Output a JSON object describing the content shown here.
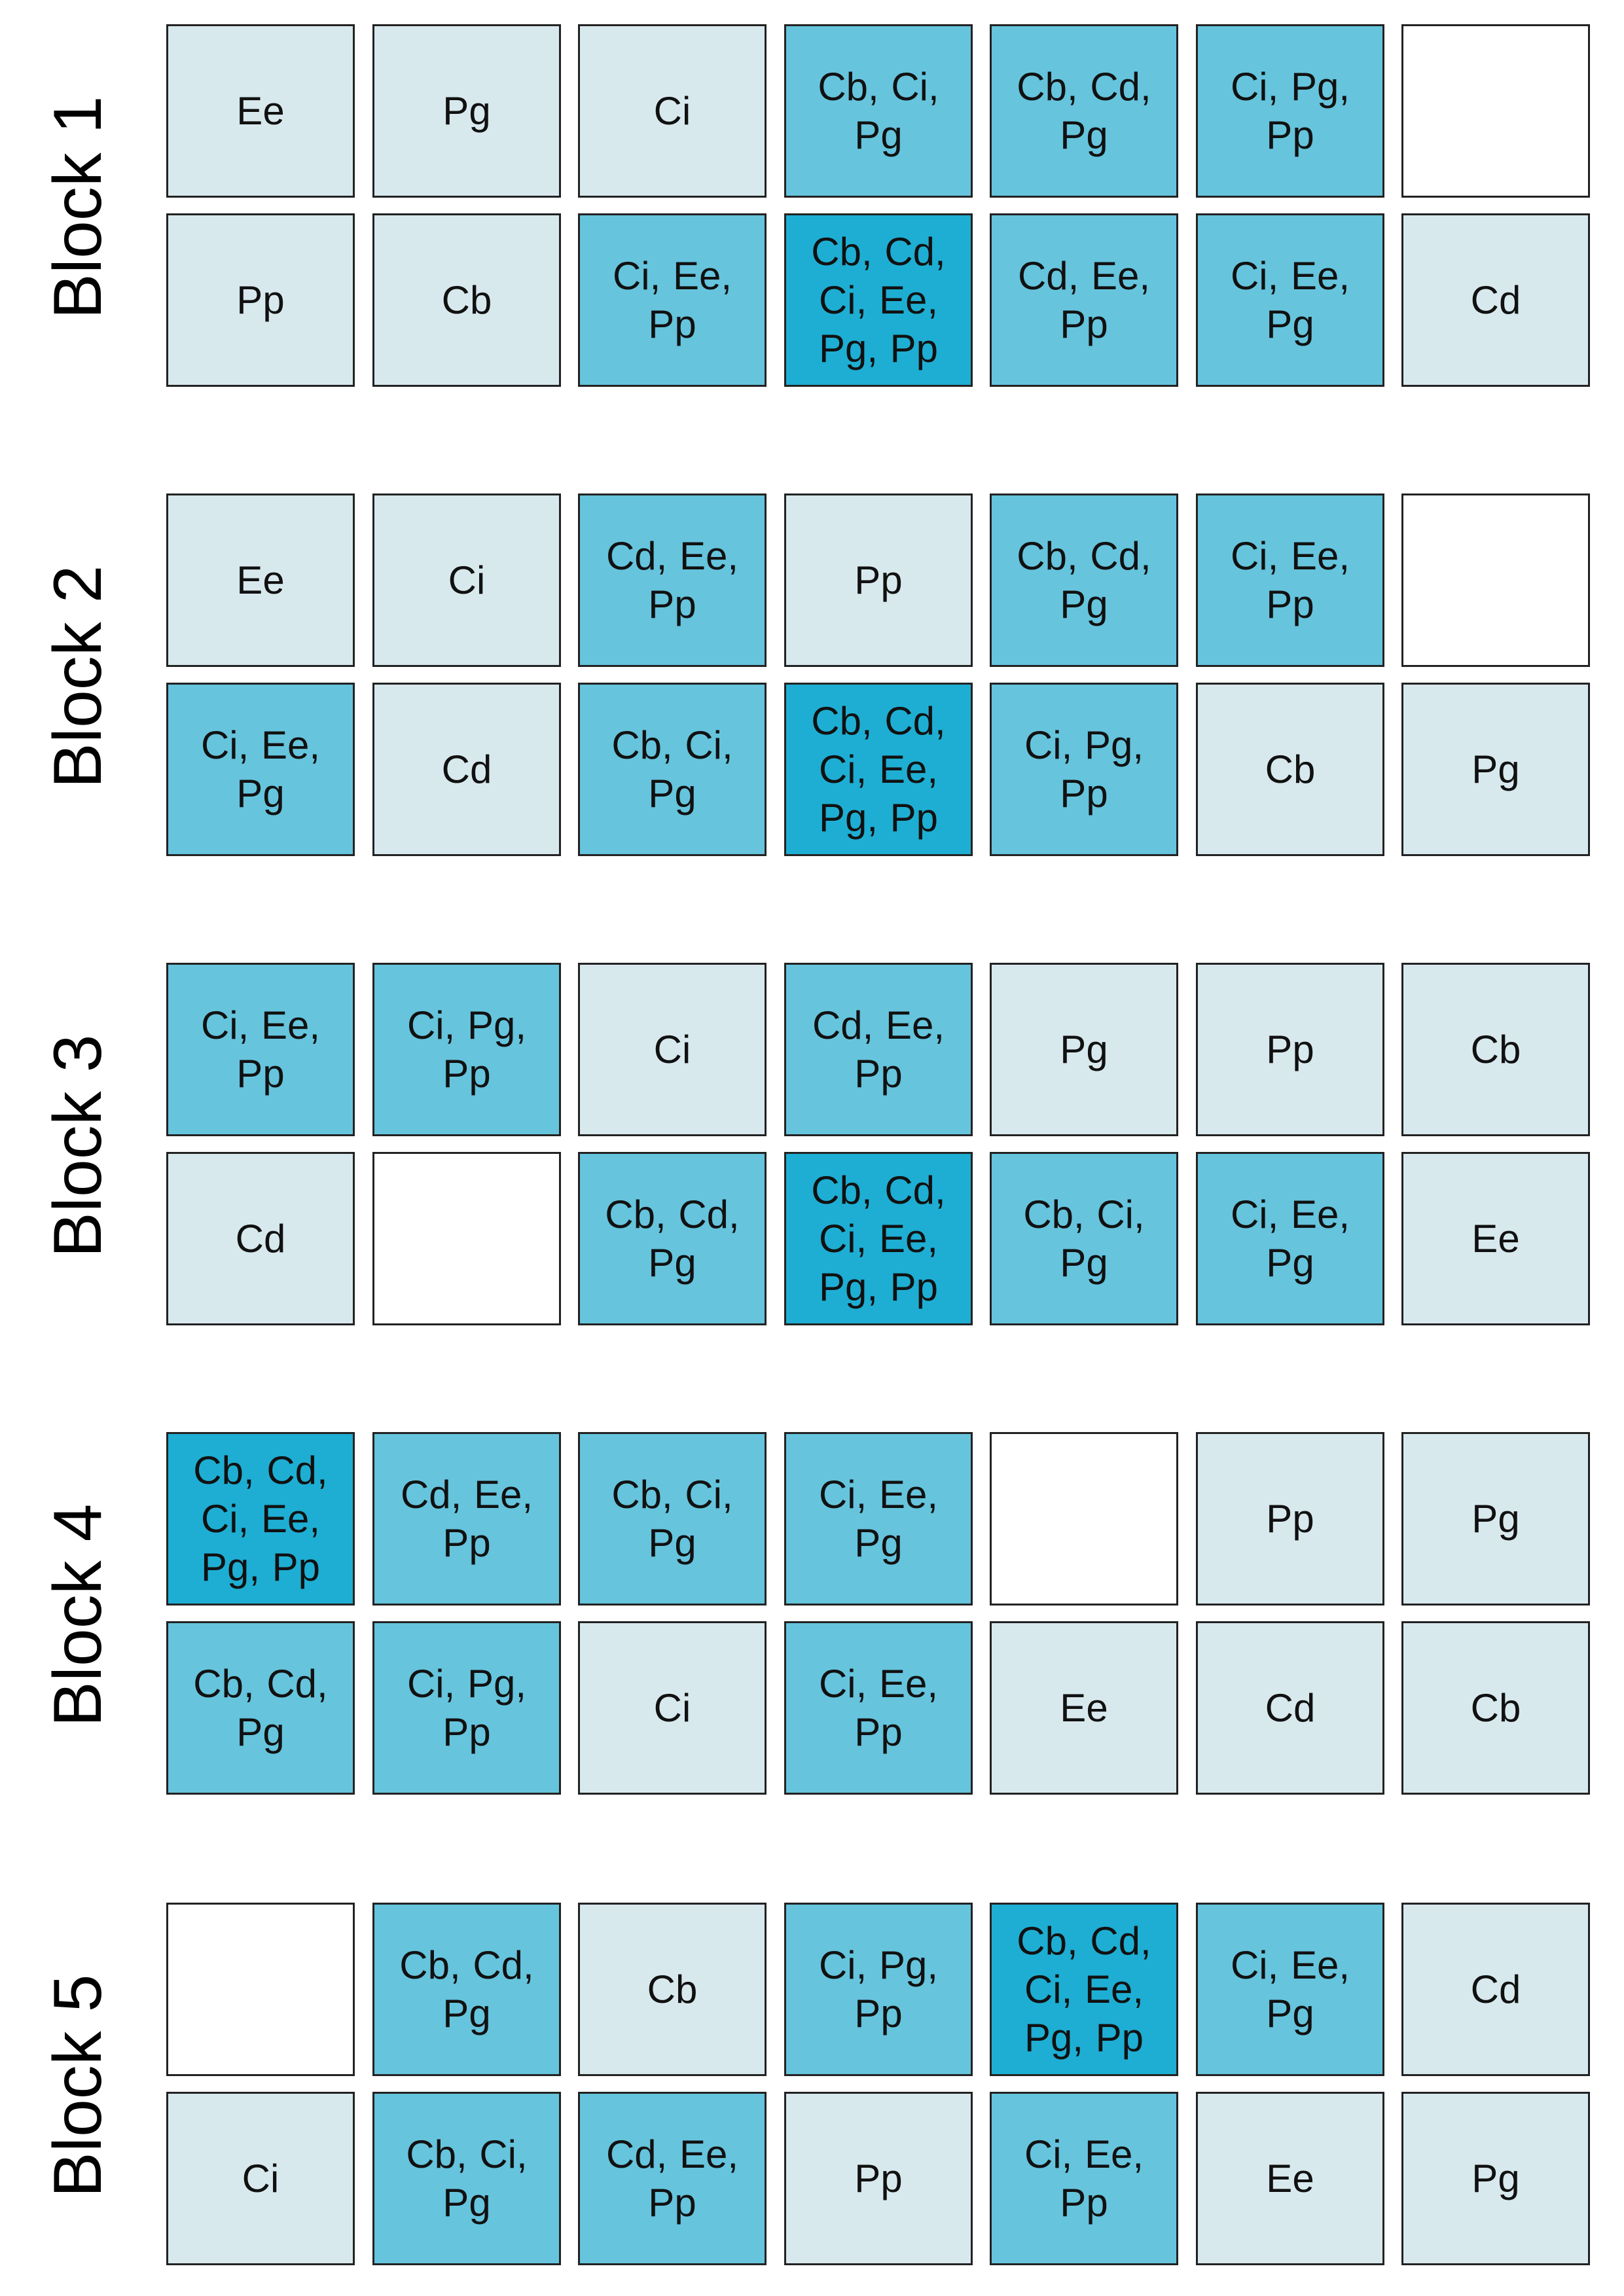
{
  "colors": {
    "single": "#d8e9ee",
    "triple": "#66c4dd",
    "six": "#1eaed3",
    "empty": "#ffffff"
  },
  "blocks": [
    {
      "label": "Block 1",
      "rows": [
        [
          "Ee",
          "Pg",
          "Ci",
          "Cb, Ci, Pg",
          "Cb, Cd, Pg",
          "Ci, Pg, Pp",
          ""
        ],
        [
          "Pp",
          "Cb",
          "Ci, Ee, Pp",
          "Cb, Cd, Ci, Ee, Pg, Pp",
          "Cd, Ee, Pp",
          "Ci, Ee, Pg",
          "Cd"
        ]
      ]
    },
    {
      "label": "Block 2",
      "rows": [
        [
          "Ee",
          "Ci",
          "Cd, Ee, Pp",
          "Pp",
          "Cb, Cd, Pg",
          "Ci, Ee, Pp",
          ""
        ],
        [
          "Ci, Ee, Pg",
          "Cd",
          "Cb, Ci, Pg",
          "Cb, Cd, Ci, Ee, Pg, Pp",
          "Ci, Pg, Pp",
          "Cb",
          "Pg"
        ]
      ]
    },
    {
      "label": "Block 3",
      "rows": [
        [
          "Ci, Ee, Pp",
          "Ci, Pg, Pp",
          "Ci",
          "Cd, Ee, Pp",
          "Pg",
          "Pp",
          "Cb"
        ],
        [
          "Cd",
          "",
          "Cb, Cd, Pg",
          "Cb, Cd, Ci, Ee, Pg, Pp",
          "Cb, Ci, Pg",
          "Ci, Ee, Pg",
          "Ee"
        ]
      ]
    },
    {
      "label": "Block 4",
      "rows": [
        [
          "Cb, Cd, Ci, Ee, Pg, Pp",
          "Cd, Ee, Pp",
          "Cb, Ci, Pg",
          "Ci, Ee, Pg",
          "",
          "Pp",
          "Pg"
        ],
        [
          "Cb, Cd, Pg",
          "Ci, Pg, Pp",
          "Ci",
          "Ci, Ee, Pp",
          "Ee",
          "Cd",
          "Cb"
        ]
      ]
    },
    {
      "label": "Block 5",
      "rows": [
        [
          "",
          "Cb, Cd, Pg",
          "Cb",
          "Ci, Pg, Pp",
          "Cb, Cd, Ci, Ee, Pg, Pp",
          "Ci, Ee, Pg",
          "Cd"
        ],
        [
          "Ci",
          "Cb, Ci, Pg",
          "Cd, Ee, Pp",
          "Pp",
          "Ci, Ee, Pp",
          "Ee",
          "Pg"
        ]
      ]
    }
  ]
}
